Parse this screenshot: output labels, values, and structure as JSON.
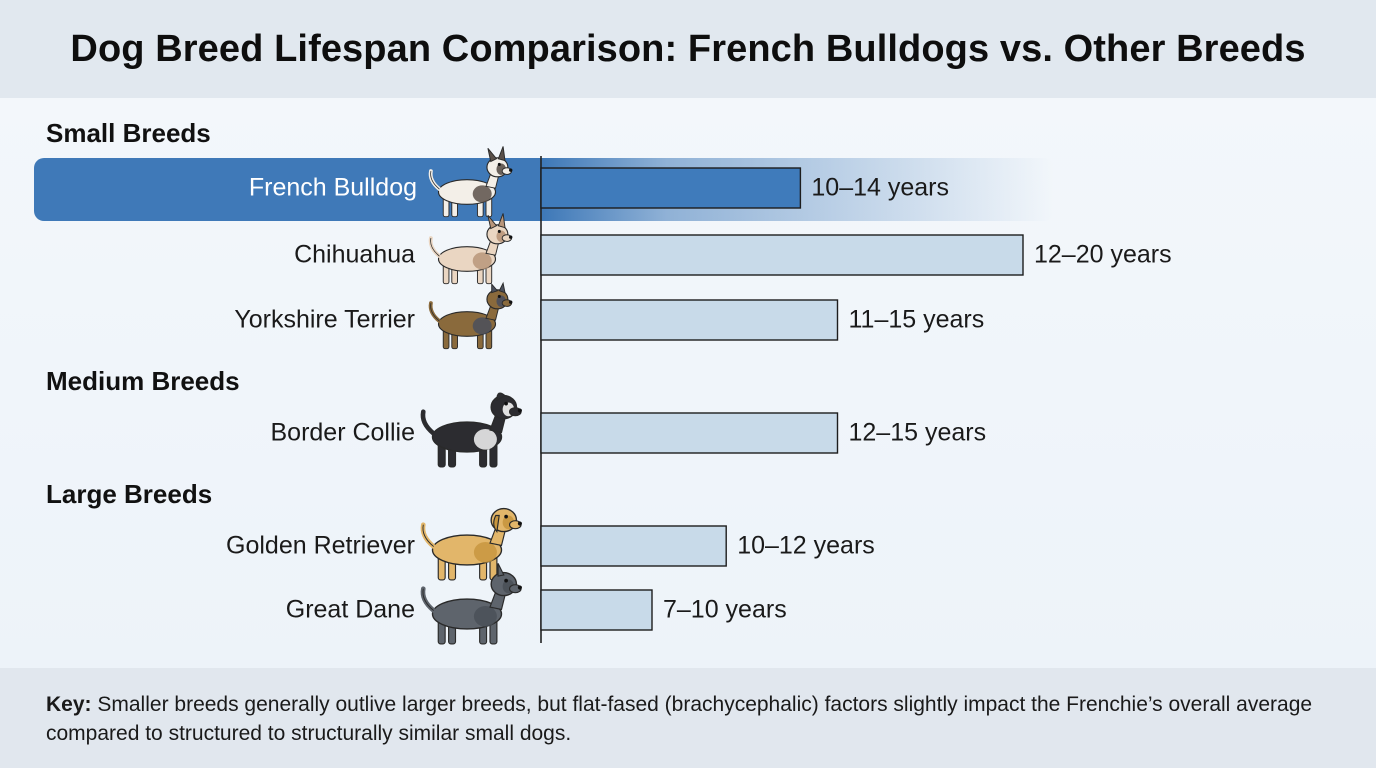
{
  "title": "Dog Breed Lifespan Comparison: French Bulldogs vs. Other Breeds",
  "chart_data": {
    "type": "bar",
    "orientation": "horizontal",
    "groups": [
      {
        "name": "Small Breeds",
        "items": [
          {
            "breed": "French Bulldog",
            "min": 10,
            "max": 14,
            "label": "10–14 years",
            "highlight": true,
            "icon": "french-bulldog-icon"
          },
          {
            "breed": "Chihuahua",
            "min": 12,
            "max": 20,
            "label": "12–20 years",
            "highlight": false,
            "icon": "chihuahua-icon"
          },
          {
            "breed": "Yorkshire Terrier",
            "min": 11,
            "max": 15,
            "label": "11–15 years",
            "highlight": false,
            "icon": "yorkshire-terrier-icon"
          }
        ]
      },
      {
        "name": "Medium Breeds",
        "items": [
          {
            "breed": "Border Collie",
            "min": 12,
            "max": 15,
            "label": "12–15 years",
            "highlight": false,
            "icon": "border-collie-icon"
          }
        ]
      },
      {
        "name": "Large Breeds",
        "items": [
          {
            "breed": "Golden Retriever",
            "min": 10,
            "max": 12,
            "label": "10–12 years",
            "highlight": false,
            "icon": "golden-retriever-icon"
          },
          {
            "breed": "Great Dane",
            "min": 7,
            "max": 10,
            "label": "7–10 years",
            "highlight": false,
            "icon": "great-dane-icon"
          }
        ]
      }
    ],
    "xlim": [
      0,
      21
    ],
    "grid": false,
    "colors": {
      "highlight_bar": "#3f7bbb",
      "highlight_row": "#3f79b8",
      "bar": "#c8dae9",
      "bar_stroke": "#1d1d1d"
    }
  },
  "footer": {
    "key_label": "Key:",
    "text": "Smaller breeds generally outlive larger breeds, but flat-fased (brachycephalic) factors slightly impact the Frenchie’s overall average compared to structured to structurally similar small dogs."
  }
}
